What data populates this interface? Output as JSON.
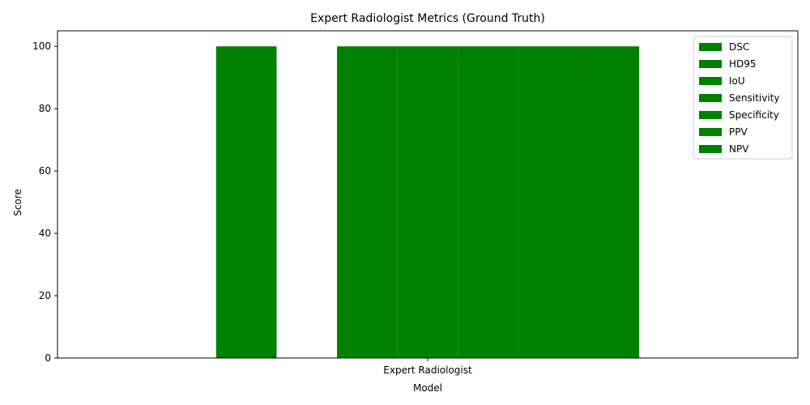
{
  "chart_data": {
    "type": "bar",
    "title": "Expert Radiologist Metrics (Ground Truth)",
    "xlabel": "Model",
    "ylabel": "Score",
    "categories": [
      "Expert Radiologist"
    ],
    "ylim": [
      0,
      105
    ],
    "yticks": [
      0,
      20,
      40,
      60,
      80,
      100
    ],
    "bar_color": "#008000",
    "series": [
      {
        "name": "DSC",
        "values": [
          100
        ]
      },
      {
        "name": "HD95",
        "values": [
          0
        ]
      },
      {
        "name": "IoU",
        "values": [
          100
        ]
      },
      {
        "name": "Sensitivity",
        "values": [
          100
        ]
      },
      {
        "name": "Specificity",
        "values": [
          100
        ]
      },
      {
        "name": "PPV",
        "values": [
          100
        ]
      },
      {
        "name": "NPV",
        "values": [
          100
        ]
      }
    ],
    "grid": false,
    "legend": "top-right"
  }
}
